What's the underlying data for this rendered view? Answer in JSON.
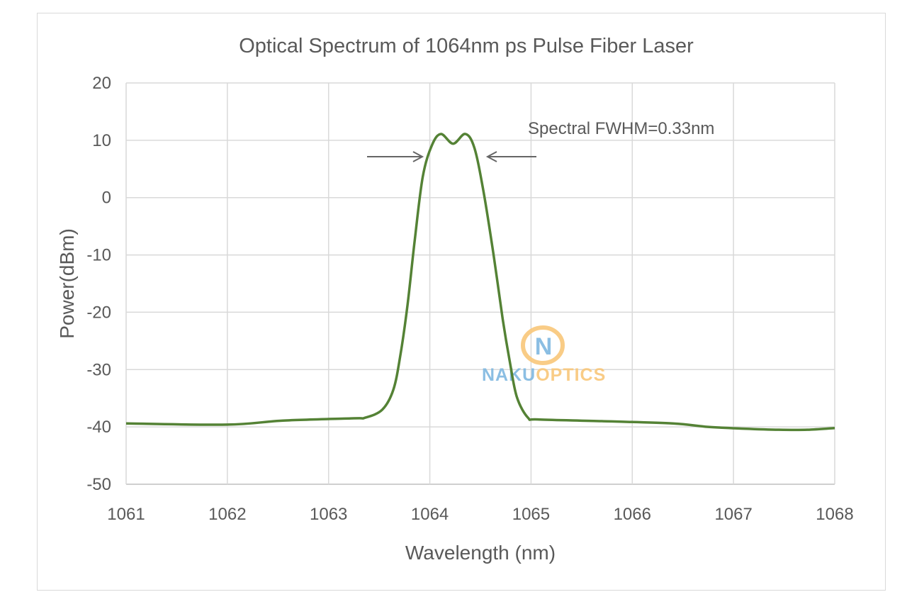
{
  "chart_data": {
    "type": "line",
    "title": "Optical Spectrum of 1064nm ps Pulse Fiber Laser",
    "xlabel": "Wavelength (nm)",
    "ylabel": "Power(dBm)",
    "xlim": [
      1061,
      1068
    ],
    "ylim": [
      -50,
      20
    ],
    "xticks": [
      1061,
      1062,
      1063,
      1064,
      1065,
      1066,
      1067,
      1068
    ],
    "yticks": [
      20,
      10,
      0,
      -10,
      -20,
      -30,
      -40,
      -50
    ],
    "grid": true,
    "legend": "none",
    "annotation": {
      "text": "Spectral FWHM=0.33nm",
      "fwhm_nm": 0.33
    },
    "watermark": {
      "logo_letter": "N",
      "text_part1": "NAKU",
      "text_part2": "OPTICS"
    },
    "colors": {
      "series": "#548235",
      "grid": "#d9d9d9",
      "text": "#595959",
      "logo_blue": "#7fb8e0",
      "logo_orange": "#f9c77a"
    },
    "series": [
      {
        "x": [
          1061.0,
          1062.0,
          1062.55,
          1063.25,
          1063.36,
          1063.53,
          1063.64,
          1063.71,
          1063.78,
          1063.85,
          1063.93,
          1064.02,
          1064.11,
          1064.23,
          1064.35,
          1064.44,
          1064.53,
          1064.63,
          1064.72,
          1064.79,
          1064.86,
          1064.97,
          1065.07,
          1065.7,
          1066.4,
          1066.75,
          1067.1,
          1067.45,
          1067.73,
          1068.0
        ],
        "y": [
          -39.4,
          -39.6,
          -38.9,
          -38.5,
          -38.4,
          -37.0,
          -33.5,
          -27.4,
          -18.7,
          -7.6,
          3.6,
          9.1,
          11.1,
          9.4,
          11.1,
          8.7,
          1.1,
          -10.0,
          -21.2,
          -28.6,
          -34.8,
          -38.4,
          -38.7,
          -39.0,
          -39.4,
          -40.0,
          -40.3,
          -40.5,
          -40.5,
          -40.2
        ]
      }
    ]
  }
}
